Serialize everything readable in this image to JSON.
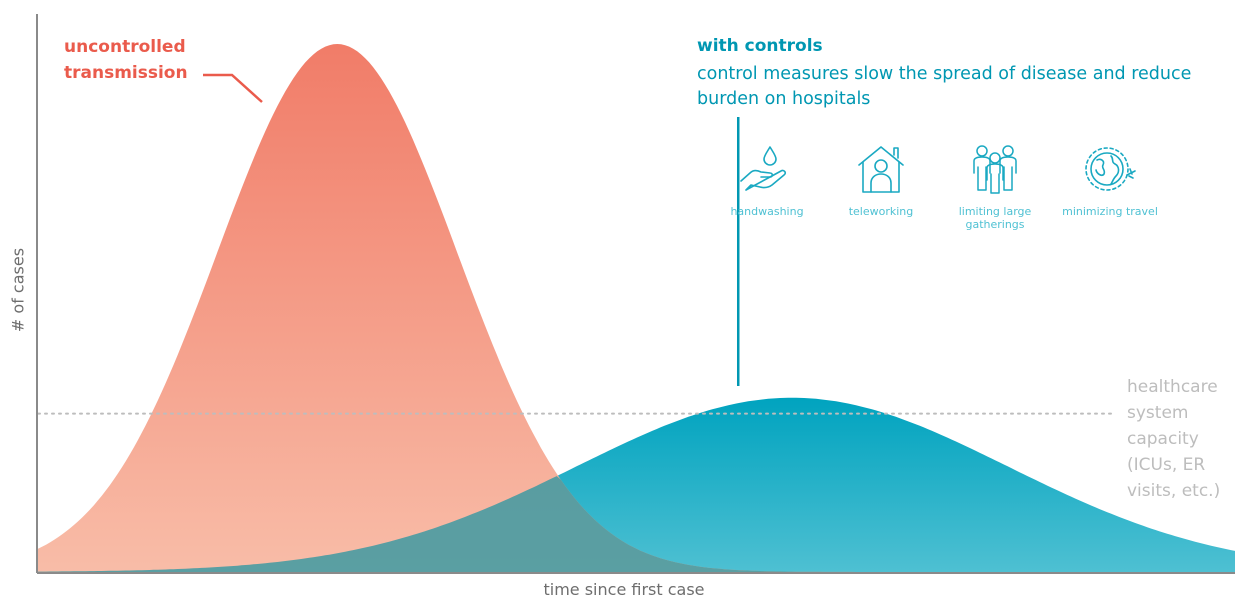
{
  "chart_data": {
    "type": "area",
    "title": "",
    "xlabel": "time since first case",
    "ylabel": "# of cases",
    "series": [
      {
        "name": "uncontrolled transmission",
        "color": "#f07560",
        "peak_x": 0.25,
        "peak_y": 1.0,
        "width": 0.1
      },
      {
        "name": "with controls",
        "color": "#05a6c2",
        "peak_x": 0.63,
        "peak_y": 0.33,
        "width": 0.18
      }
    ],
    "reference_line": {
      "label": "healthcare system capacity (ICUs, ER visits, etc.)",
      "y": 0.3,
      "style": "dotted"
    },
    "control_marker": {
      "x": 0.585
    },
    "grid": false,
    "legend": "none"
  },
  "labels": {
    "uncontrolled": "uncontrolled transmission",
    "controls_title": "with controls",
    "controls_desc": "control measures slow the spread of disease and reduce burden on hospitals",
    "capacity": "healthcare system capacity (ICUs, ER visits, etc.)",
    "x_axis": "time since first case",
    "y_axis": "# of cases"
  },
  "measures": [
    {
      "label": "handwashing",
      "icon": "handwashing-icon"
    },
    {
      "label": "teleworking",
      "icon": "teleworking-icon"
    },
    {
      "label": "limiting large gatherings",
      "icon": "limiting-gatherings-icon"
    },
    {
      "label": "minimizing travel",
      "icon": "minimizing-travel-icon"
    }
  ],
  "colors": {
    "red": "#ea5b4c",
    "teal": "#0097b2",
    "teal_light": "#4fc1d3",
    "axis": "#8a8a8a",
    "capacity": "#bdbdbd"
  }
}
